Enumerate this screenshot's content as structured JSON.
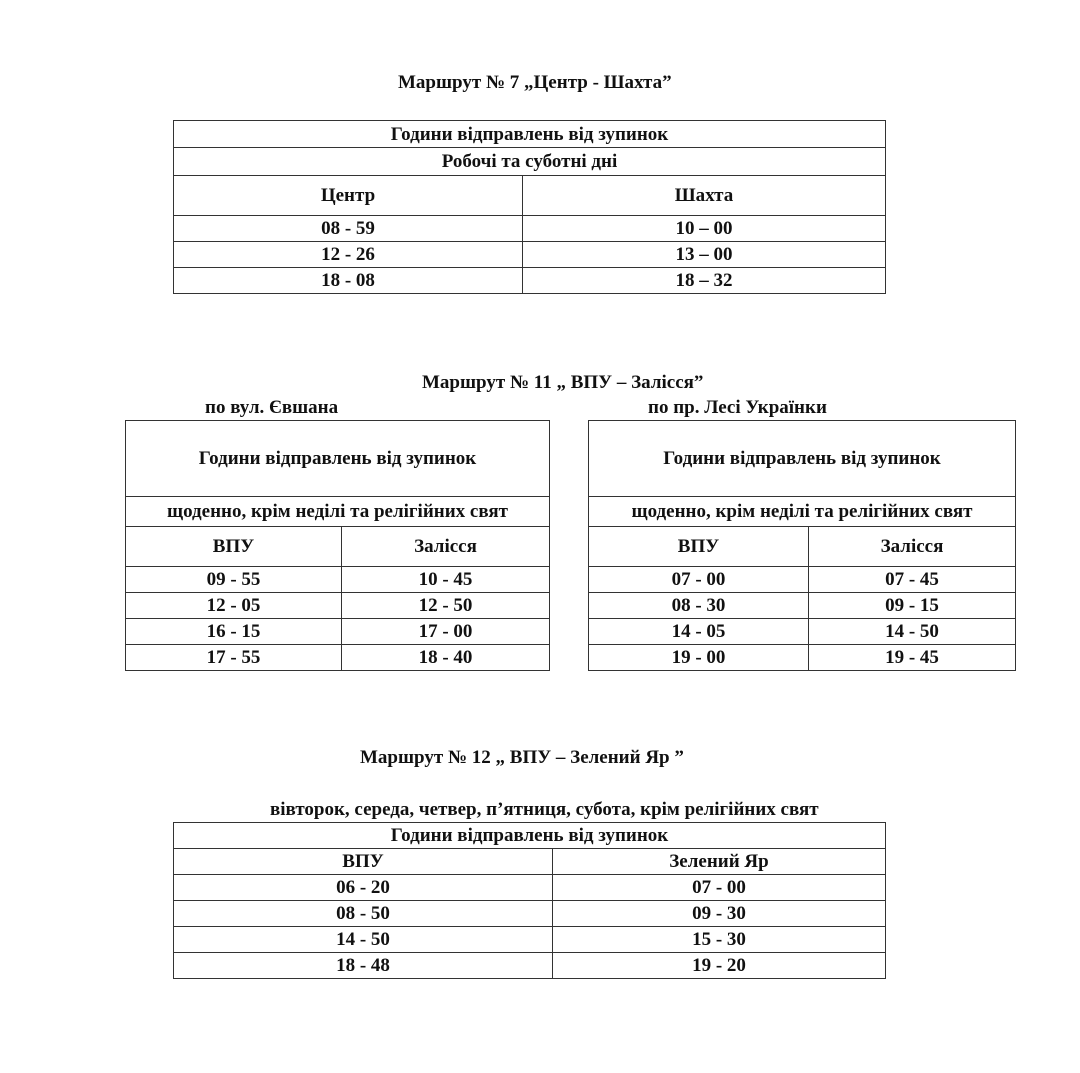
{
  "route7": {
    "title": "Маршрут  № 7 „Центр - Шахта”",
    "header": "Години відправлень від зупинок",
    "days": "Робочі та суботні дні",
    "columns": [
      "Центр",
      "Шахта"
    ],
    "rows": [
      [
        "08 - 59",
        "10 – 00"
      ],
      [
        "12 - 26",
        "13 – 00"
      ],
      [
        "18 - 08",
        "18 – 32"
      ]
    ]
  },
  "route11": {
    "title": "Маршрут  № 11 „ ВПУ – Залісся”",
    "left": {
      "subtitle": "по вул. Євшана",
      "header": "Години відправлень від зупинок",
      "days": "щоденно, крім неділі та релігійних свят",
      "columns": [
        "ВПУ",
        "Залісся"
      ],
      "rows": [
        [
          "09 - 55",
          "10 - 45"
        ],
        [
          "12 - 05",
          "12 - 50"
        ],
        [
          "16 - 15",
          "17 - 00"
        ],
        [
          "17 - 55",
          "18 - 40"
        ]
      ]
    },
    "right": {
      "subtitle": "по пр. Лесі Українки",
      "header": "Години відправлень від зупинок",
      "days": "щоденно, крім неділі та релігійних свят",
      "columns": [
        "ВПУ",
        "Залісся"
      ],
      "rows": [
        [
          "07 - 00",
          "07 - 45"
        ],
        [
          "08 - 30",
          "09 - 15"
        ],
        [
          "14 - 05",
          "14 - 50"
        ],
        [
          "19 - 00",
          "19 - 45"
        ]
      ]
    }
  },
  "route12": {
    "title": "Маршрут  № 12 „ ВПУ – Зелений Яр ”",
    "days": "вівторок, середа, четвер, п’ятниця, субота, крім релігійних свят",
    "header": "Години відправлень від зупинок",
    "columns": [
      "ВПУ",
      "Зелений Яр"
    ],
    "rows": [
      [
        "06 - 20",
        "07 - 00"
      ],
      [
        "08 - 50",
        "09 - 30"
      ],
      [
        "14 - 50",
        "15 - 30"
      ],
      [
        "18 - 48",
        "19 - 20"
      ]
    ]
  }
}
